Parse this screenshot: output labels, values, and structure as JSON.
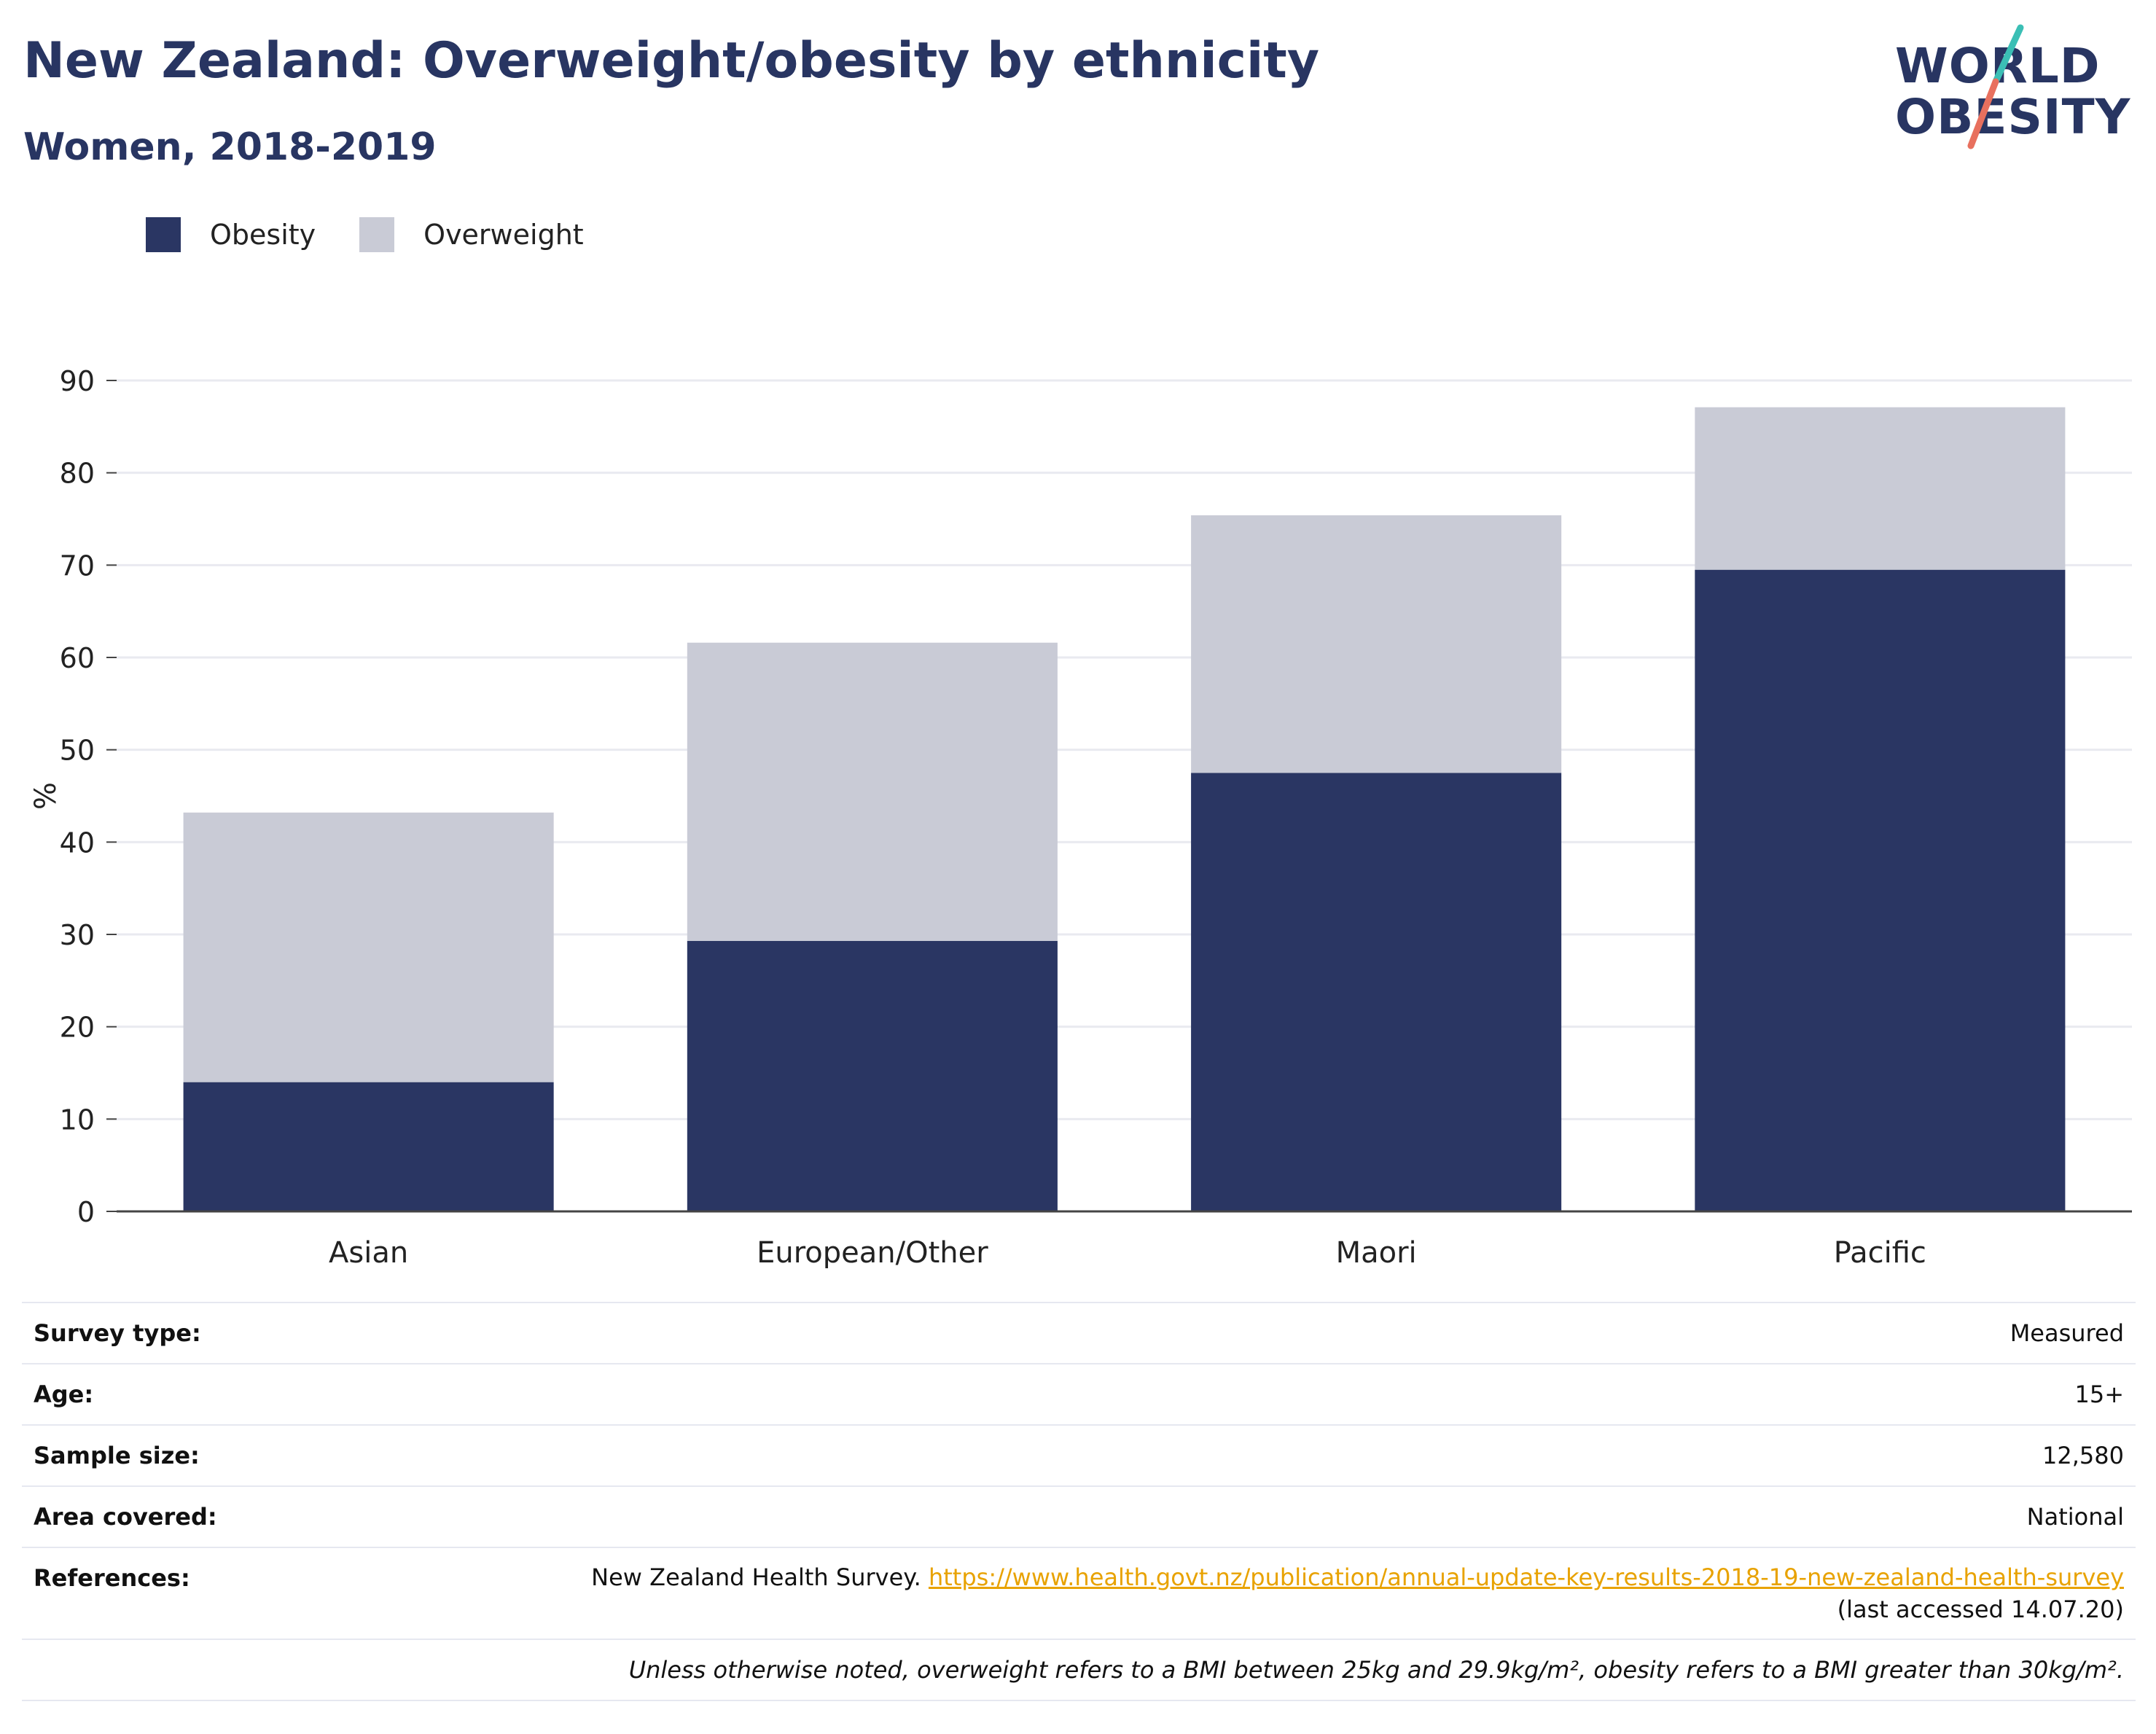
{
  "header": {
    "title": "New Zealand: Overweight/obesity by ethnicity",
    "subtitle": "Women, 2018-2019"
  },
  "logo": {
    "line1": "WORLD",
    "line2": "OBESITY",
    "colors": {
      "text": "#283562",
      "slash_top": "#3bbfb5",
      "slash_bottom": "#e8705e"
    }
  },
  "legend": [
    {
      "label": "Obesity",
      "color": "#2a3663"
    },
    {
      "label": "Overweight",
      "color": "#c9cbd6"
    }
  ],
  "chart_data": {
    "type": "bar",
    "stacked": true,
    "categories": [
      "Asian",
      "European/Other",
      "Maori",
      "Pacific"
    ],
    "series": [
      {
        "name": "Obesity",
        "color": "#2a3663",
        "values": [
          14.0,
          29.3,
          47.5,
          69.5
        ]
      },
      {
        "name": "Overweight",
        "color": "#c9cbd6",
        "values": [
          29.2,
          32.3,
          27.9,
          17.6
        ]
      }
    ],
    "ylabel": "%",
    "ylim": [
      0,
      90
    ],
    "yticks": [
      0,
      10,
      20,
      30,
      40,
      50,
      60,
      70,
      80,
      90
    ],
    "grid": true,
    "legend_position": "top-left"
  },
  "info": {
    "survey_type": {
      "label": "Survey type:",
      "value": "Measured"
    },
    "age": {
      "label": "Age:",
      "value": "15+"
    },
    "sample_size": {
      "label": "Sample size:",
      "value": "12,580"
    },
    "area": {
      "label": "Area covered:",
      "value": "National"
    },
    "references": {
      "label": "References:",
      "text": "New Zealand Health Survey.",
      "link": "https://www.health.govt.nz/publication/annual-update-key-results-2018-19-new-zealand-health-survey",
      "accessed": "(last accessed 14.07.20)"
    },
    "note": "Unless otherwise noted, overweight refers to a BMI between 25kg and 29.9kg/m², obesity refers to a BMI greater than 30kg/m²."
  }
}
